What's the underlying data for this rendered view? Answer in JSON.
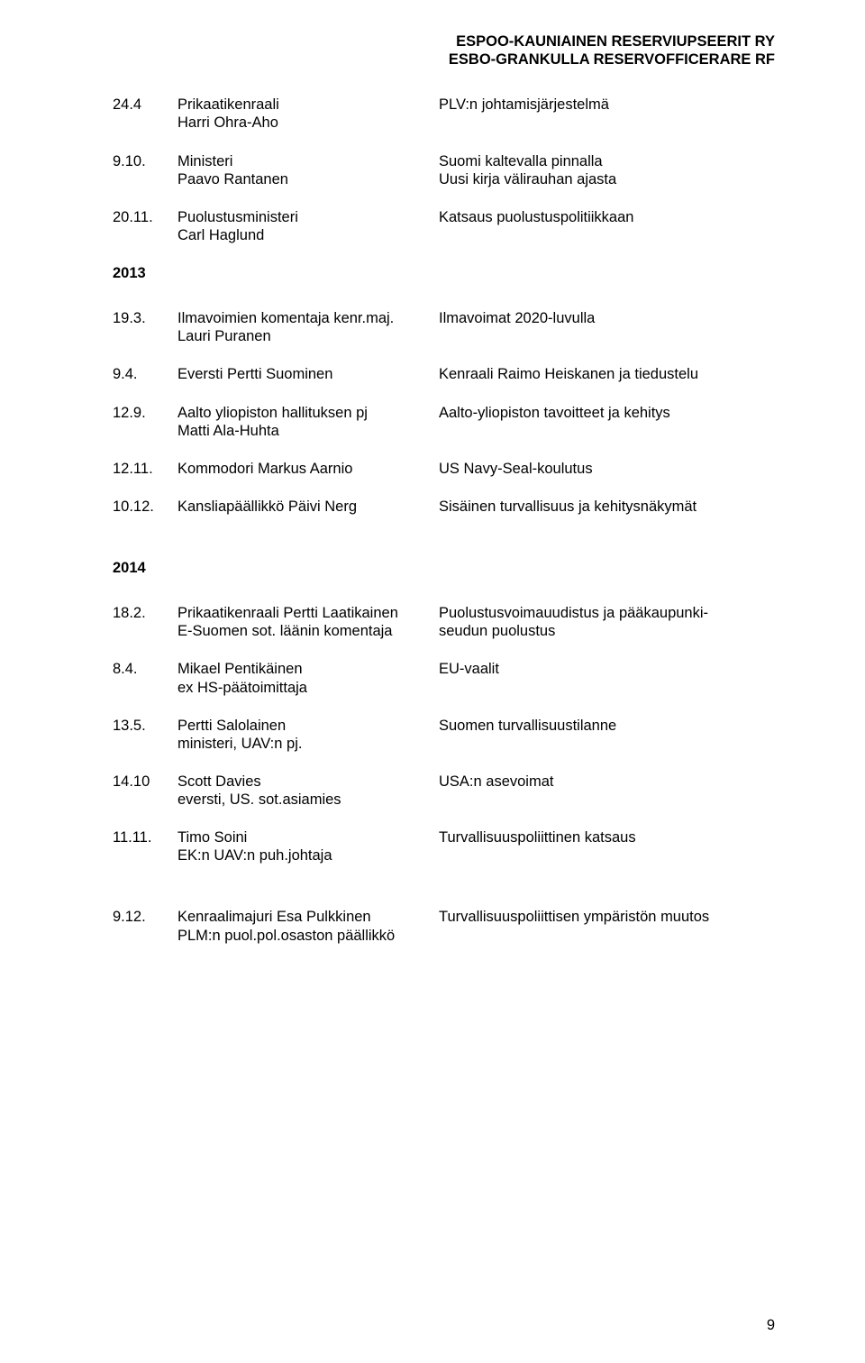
{
  "header": {
    "line1": "ESPOO-KAUNIAINEN RESERVIUPSEERIT RY",
    "line2": "ESBO-GRANKULLA RESERVOFFICERARE RF"
  },
  "blocks": [
    {
      "entries": [
        {
          "date": "24.4",
          "person_l1": "Prikaatikenraali",
          "person_l2": "Harri Ohra-Aho",
          "topic_l1": "PLV:n johtamisjärjestelmä",
          "topic_l2": ""
        },
        {
          "date": "9.10.",
          "person_l1": "Ministeri",
          "person_l2": "Paavo Rantanen",
          "topic_l1": "Suomi kaltevalla pinnalla",
          "topic_l2": "Uusi kirja välirauhan ajasta"
        },
        {
          "date": "20.11.",
          "person_l1": "Puolustusministeri",
          "person_l2": "Carl Haglund",
          "topic_l1": "Katsaus puolustuspolitiikkaan",
          "topic_l2": ""
        }
      ]
    },
    {
      "year": "2013",
      "entries": [
        {
          "date": "19.3.",
          "person_l1": "Ilmavoimien komentaja kenr.maj.",
          "person_l2": "Lauri Puranen",
          "topic_l1": "Ilmavoimat 2020-luvulla",
          "topic_l2": ""
        },
        {
          "date": "9.4.",
          "person_l1": "Eversti Pertti Suominen",
          "person_l2": "",
          "topic_l1": "Kenraali Raimo Heiskanen ja tiedustelu",
          "topic_l2": ""
        },
        {
          "date": "12.9.",
          "person_l1": "Aalto yliopiston hallituksen pj",
          "person_l2": "Matti Ala-Huhta",
          "topic_l1": "Aalto-yliopiston tavoitteet ja kehitys",
          "topic_l2": ""
        },
        {
          "date": "12.11.",
          "person_l1": "Kommodori Markus Aarnio",
          "person_l2": "",
          "topic_l1": "US Navy-Seal-koulutus",
          "topic_l2": ""
        },
        {
          "date": "10.12.",
          "person_l1": "Kansliapäällikkö Päivi Nerg",
          "person_l2": "",
          "topic_l1": "Sisäinen turvallisuus ja kehitysnäkymät",
          "topic_l2": ""
        }
      ]
    },
    {
      "year": "2014",
      "entries": [
        {
          "date": "18.2.",
          "person_l1": "Prikaatikenraali Pertti Laatikainen",
          "person_l2": "E-Suomen sot. läänin komentaja",
          "topic_l1": "Puolustusvoimauudistus ja pääkaupunki-",
          "topic_l2": "seudun puolustus"
        },
        {
          "date": "8.4.",
          "person_l1": "Mikael Pentikäinen",
          "person_l2": "ex HS-päätoimittaja",
          "topic_l1": "EU-vaalit",
          "topic_l2": ""
        },
        {
          "date": "13.5.",
          "person_l1": "Pertti Salolainen",
          "person_l2": "ministeri, UAV:n pj.",
          "topic_l1": "Suomen turvallisuustilanne",
          "topic_l2": ""
        },
        {
          "date": "14.10",
          "person_l1": "Scott Davies",
          "person_l2": "eversti, US. sot.asiamies",
          "topic_l1": "USA:n asevoimat",
          "topic_l2": ""
        },
        {
          "date": "11.11.",
          "person_l1": "Timo Soini",
          "person_l2": " EK:n UAV:n puh.johtaja",
          "topic_l1": "Turvallisuuspoliittinen katsaus",
          "topic_l2": ""
        }
      ]
    },
    {
      "entries": [
        {
          "date": "9.12.",
          "person_l1": "Kenraalimajuri Esa Pulkkinen",
          "person_l2": "PLM:n puol.pol.osaston päällikkö",
          "topic_l1": "Turvallisuuspoliittisen ympäristön muutos",
          "topic_l2": ""
        }
      ]
    }
  ],
  "page_number": "9"
}
